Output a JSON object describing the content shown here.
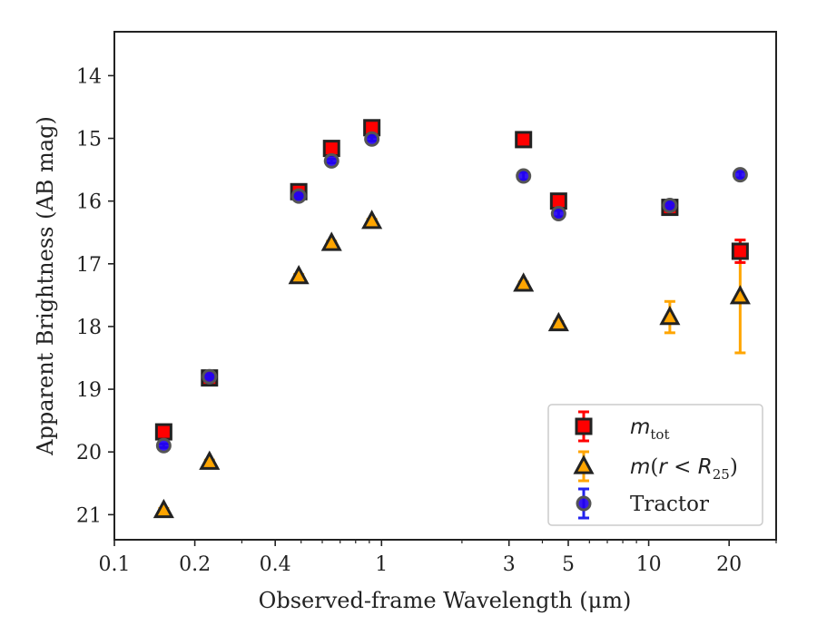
{
  "chart_data": {
    "type": "scatter",
    "xlabel": "Observed-frame Wavelength (μm)",
    "ylabel": "Apparent Brightness (AB mag)",
    "xscale": "log",
    "xlim": [
      0.1,
      30
    ],
    "ylim": [
      21.4,
      13.3
    ],
    "y_inverted": true,
    "x_ticks": [
      {
        "value": 0.1,
        "label": "0.1"
      },
      {
        "value": 0.2,
        "label": "0.2"
      },
      {
        "value": 0.4,
        "label": "0.4"
      },
      {
        "value": 1,
        "label": "1"
      },
      {
        "value": 3,
        "label": "3"
      },
      {
        "value": 5,
        "label": "5"
      },
      {
        "value": 10,
        "label": "10"
      },
      {
        "value": 20,
        "label": "20"
      }
    ],
    "y_ticks": [
      14,
      15,
      16,
      17,
      18,
      19,
      20,
      21
    ],
    "grid": false,
    "legend_position": "lower-right",
    "series": [
      {
        "name": "m_tot",
        "marker": "square",
        "color": "#ff0000",
        "edge_color": "#222222",
        "error_color": "#ff0000",
        "points": [
          {
            "x": 0.153,
            "y": 19.68,
            "err": 0.05
          },
          {
            "x": 0.227,
            "y": 18.82,
            "err": 0.03
          },
          {
            "x": 0.49,
            "y": 15.85,
            "err": 0.03
          },
          {
            "x": 0.65,
            "y": 15.16,
            "err": 0.03
          },
          {
            "x": 0.92,
            "y": 14.83,
            "err": 0.03
          },
          {
            "x": 3.4,
            "y": 15.02,
            "err": 0.03
          },
          {
            "x": 4.6,
            "y": 16.0,
            "err": 0.03
          },
          {
            "x": 12.0,
            "y": 16.1,
            "err": 0.05
          },
          {
            "x": 22.0,
            "y": 16.8,
            "err": 0.18
          }
        ]
      },
      {
        "name": "m(r<R25)",
        "marker": "triangle",
        "color": "#ffa500",
        "edge_color": "#222222",
        "error_color": "#ffa500",
        "points": [
          {
            "x": 0.153,
            "y": 20.93,
            "err": 0.03
          },
          {
            "x": 0.227,
            "y": 20.16,
            "err": 0.03
          },
          {
            "x": 0.49,
            "y": 17.2,
            "err": 0.03
          },
          {
            "x": 0.65,
            "y": 16.67,
            "err": 0.03
          },
          {
            "x": 0.92,
            "y": 16.32,
            "err": 0.03
          },
          {
            "x": 3.4,
            "y": 17.32,
            "err": 0.03
          },
          {
            "x": 4.6,
            "y": 17.95,
            "err": 0.03
          },
          {
            "x": 12.0,
            "y": 17.85,
            "err": 0.25
          },
          {
            "x": 22.0,
            "y": 17.52,
            "err": 0.9
          }
        ]
      },
      {
        "name": "Tractor",
        "marker": "circle",
        "color": "#2200ee",
        "edge_color": "#555555",
        "error_color": "#2222ee",
        "points": [
          {
            "x": 0.153,
            "y": 19.9,
            "err": 0.03
          },
          {
            "x": 0.227,
            "y": 18.8,
            "err": 0.03
          },
          {
            "x": 0.49,
            "y": 15.92,
            "err": 0.03
          },
          {
            "x": 0.65,
            "y": 15.36,
            "err": 0.03
          },
          {
            "x": 0.92,
            "y": 15.01,
            "err": 0.03
          },
          {
            "x": 3.4,
            "y": 15.6,
            "err": 0.06
          },
          {
            "x": 4.6,
            "y": 16.2,
            "err": 0.05
          },
          {
            "x": 12.0,
            "y": 16.07,
            "err": 0.04
          },
          {
            "x": 22.0,
            "y": 15.58,
            "err": 0.05
          }
        ]
      }
    ]
  }
}
